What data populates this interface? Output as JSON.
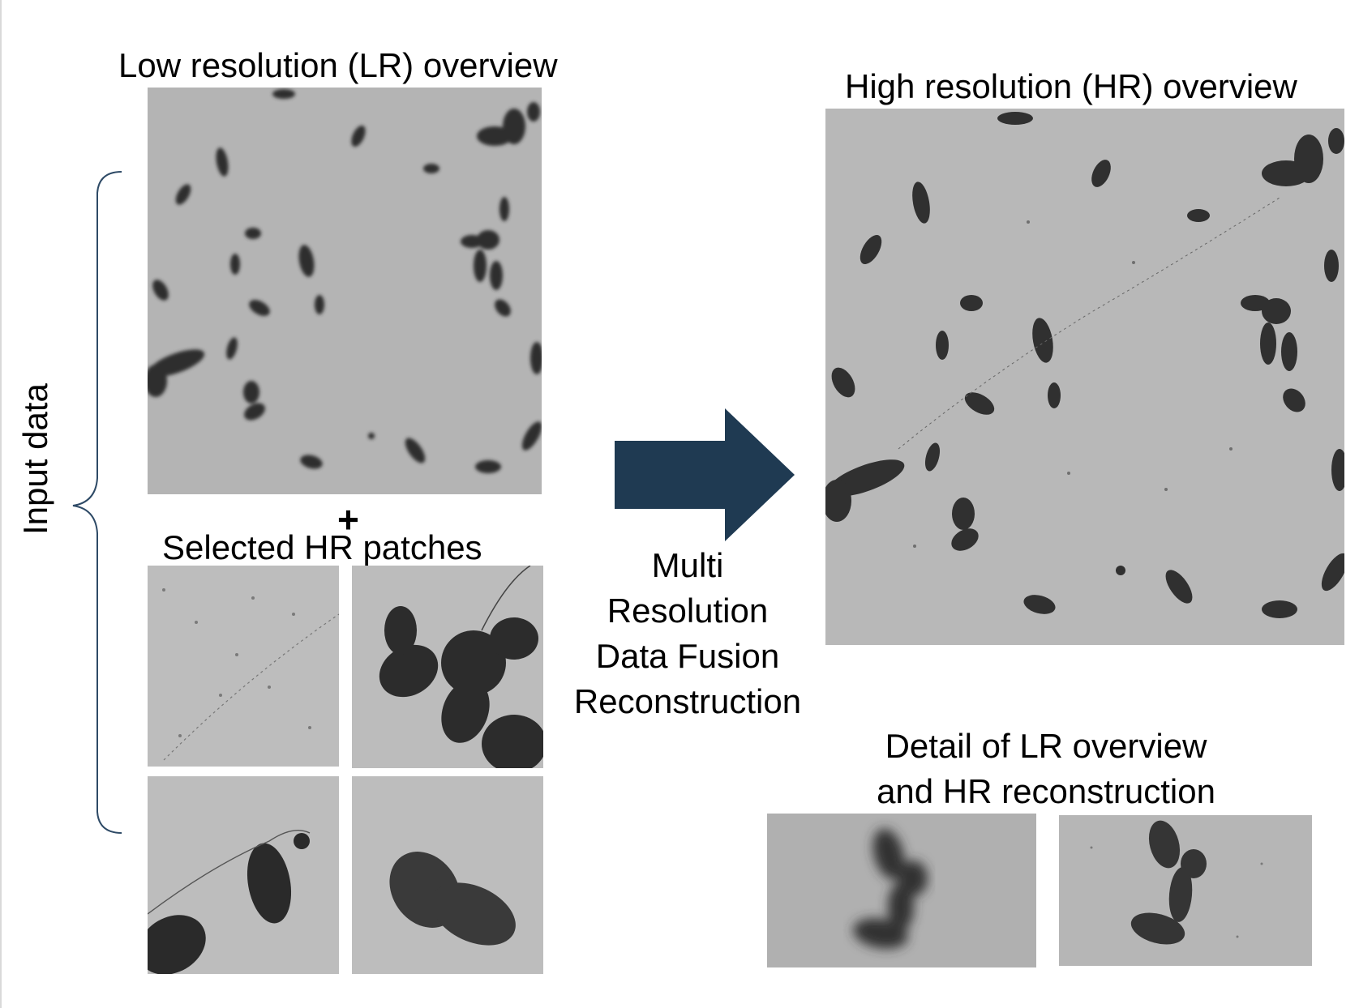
{
  "left": {
    "lr_title": "Low resolution (LR)  overview",
    "plus": "+",
    "patches_title": "Selected HR patches",
    "group_label": "Input data"
  },
  "process": {
    "lines": [
      "Multi",
      "Resolution",
      "Data Fusion",
      "Reconstruction"
    ]
  },
  "right": {
    "hr_title": "High resolution (HR) overview",
    "detail_title_line1": "Detail of LR overview",
    "detail_title_line2": "and HR reconstruction"
  },
  "colors": {
    "arrow": "#1f3a52",
    "bracket": "#2e4a66",
    "background_lr": "#b4b4b4",
    "background_hr": "#b8b8b8",
    "cell_dark": "#2a2a2a"
  }
}
